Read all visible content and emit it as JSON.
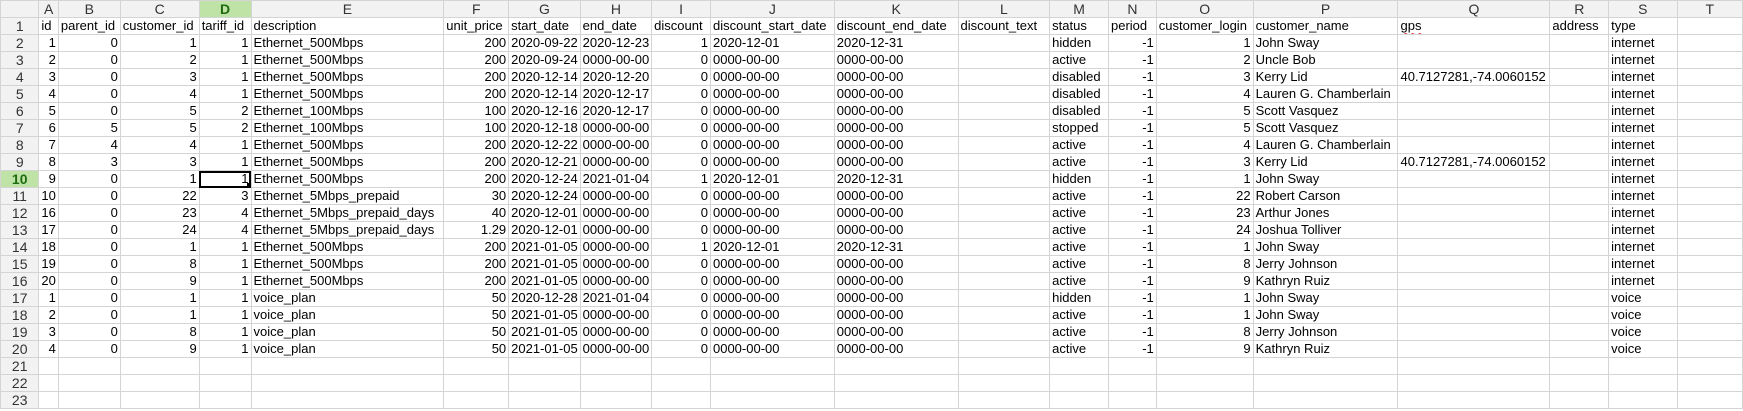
{
  "sheet": {
    "selected_cell": "D10",
    "column_letters": [
      "A",
      "B",
      "C",
      "D",
      "E",
      "F",
      "G",
      "H",
      "I",
      "J",
      "K",
      "L",
      "M",
      "N",
      "O",
      "P",
      "Q",
      "R",
      "S",
      "T"
    ],
    "row_numbers": [
      1,
      2,
      3,
      4,
      5,
      6,
      7,
      8,
      9,
      10,
      11,
      12,
      13,
      14,
      15,
      16,
      17,
      18,
      19,
      20,
      21,
      22,
      23
    ],
    "headers": [
      "id",
      "parent_id",
      "customer_id",
      "tariff_id",
      "description",
      "unit_price",
      "start_date",
      "end_date",
      "discount",
      "discount_start_date",
      "discount_end_date",
      "discount_text",
      "status",
      "period",
      "customer_login",
      "customer_name",
      "gps",
      "address",
      "type",
      ""
    ],
    "rows": [
      [
        "1",
        "0",
        "1",
        "1",
        "Ethernet_500Mbps",
        "200",
        "2020-09-22",
        "2020-12-23",
        "1",
        "2020-12-01",
        "2020-12-31",
        "",
        "hidden",
        "-1",
        "1",
        "John Sway",
        "",
        "",
        "internet",
        ""
      ],
      [
        "2",
        "0",
        "2",
        "1",
        "Ethernet_500Mbps",
        "200",
        "2020-09-24",
        "0000-00-00",
        "0",
        "0000-00-00",
        "0000-00-00",
        "",
        "active",
        "-1",
        "2",
        "Uncle Bob",
        "",
        "",
        "internet",
        ""
      ],
      [
        "3",
        "0",
        "3",
        "1",
        "Ethernet_500Mbps",
        "200",
        "2020-12-14",
        "2020-12-20",
        "0",
        "0000-00-00",
        "0000-00-00",
        "",
        "disabled",
        "-1",
        "3",
        "Kerry Lid",
        "40.7127281,-74.0060152",
        "",
        "internet",
        ""
      ],
      [
        "4",
        "0",
        "4",
        "1",
        "Ethernet_500Mbps",
        "200",
        "2020-12-14",
        "2020-12-17",
        "0",
        "0000-00-00",
        "0000-00-00",
        "",
        "disabled",
        "-1",
        "4",
        "Lauren G. Chamberlain",
        "",
        "",
        "internet",
        ""
      ],
      [
        "5",
        "0",
        "5",
        "2",
        "Ethernet_100Mbps",
        "100",
        "2020-12-16",
        "2020-12-17",
        "0",
        "0000-00-00",
        "0000-00-00",
        "",
        "disabled",
        "-1",
        "5",
        "Scott Vasquez",
        "",
        "",
        "internet",
        ""
      ],
      [
        "6",
        "5",
        "5",
        "2",
        "Ethernet_100Mbps",
        "100",
        "2020-12-18",
        "0000-00-00",
        "0",
        "0000-00-00",
        "0000-00-00",
        "",
        "stopped",
        "-1",
        "5",
        "Scott Vasquez",
        "",
        "",
        "internet",
        ""
      ],
      [
        "7",
        "4",
        "4",
        "1",
        "Ethernet_500Mbps",
        "200",
        "2020-12-22",
        "0000-00-00",
        "0",
        "0000-00-00",
        "0000-00-00",
        "",
        "active",
        "-1",
        "4",
        "Lauren G. Chamberlain",
        "",
        "",
        "internet",
        ""
      ],
      [
        "8",
        "3",
        "3",
        "1",
        "Ethernet_500Mbps",
        "200",
        "2020-12-21",
        "0000-00-00",
        "0",
        "0000-00-00",
        "0000-00-00",
        "",
        "active",
        "-1",
        "3",
        "Kerry Lid",
        "40.7127281,-74.0060152",
        "",
        "internet",
        ""
      ],
      [
        "9",
        "0",
        "1",
        "1",
        "Ethernet_500Mbps",
        "200",
        "2020-12-24",
        "2021-01-04",
        "1",
        "2020-12-01",
        "2020-12-31",
        "",
        "hidden",
        "-1",
        "1",
        "John Sway",
        "",
        "",
        "internet",
        ""
      ],
      [
        "10",
        "0",
        "22",
        "3",
        "Ethernet_5Mbps_prepaid",
        "30",
        "2020-12-24",
        "0000-00-00",
        "0",
        "0000-00-00",
        "0000-00-00",
        "",
        "active",
        "-1",
        "22",
        "Robert Carson",
        "",
        "",
        "internet",
        ""
      ],
      [
        "16",
        "0",
        "23",
        "4",
        "Ethernet_5Mbps_prepaid_days",
        "40",
        "2020-12-01",
        "0000-00-00",
        "0",
        "0000-00-00",
        "0000-00-00",
        "",
        "active",
        "-1",
        "23",
        "Arthur Jones",
        "",
        "",
        "internet",
        ""
      ],
      [
        "17",
        "0",
        "24",
        "4",
        "Ethernet_5Mbps_prepaid_days",
        "1.29",
        "2020-12-01",
        "0000-00-00",
        "0",
        "0000-00-00",
        "0000-00-00",
        "",
        "active",
        "-1",
        "24",
        "Joshua Tolliver",
        "",
        "",
        "internet",
        ""
      ],
      [
        "18",
        "0",
        "1",
        "1",
        "Ethernet_500Mbps",
        "200",
        "2021-01-05",
        "0000-00-00",
        "1",
        "2020-12-01",
        "2020-12-31",
        "",
        "active",
        "-1",
        "1",
        "John Sway",
        "",
        "",
        "internet",
        ""
      ],
      [
        "19",
        "0",
        "8",
        "1",
        "Ethernet_500Mbps",
        "200",
        "2021-01-05",
        "0000-00-00",
        "0",
        "0000-00-00",
        "0000-00-00",
        "",
        "active",
        "-1",
        "8",
        "Jerry Johnson",
        "",
        "",
        "internet",
        ""
      ],
      [
        "20",
        "0",
        "9",
        "1",
        "Ethernet_500Mbps",
        "200",
        "2021-01-05",
        "0000-00-00",
        "0",
        "0000-00-00",
        "0000-00-00",
        "",
        "active",
        "-1",
        "9",
        "Kathryn Ruiz",
        "",
        "",
        "internet",
        ""
      ],
      [
        "1",
        "0",
        "1",
        "1",
        "voice_plan",
        "50",
        "2020-12-28",
        "2021-01-04",
        "0",
        "0000-00-00",
        "0000-00-00",
        "",
        "hidden",
        "-1",
        "1",
        "John Sway",
        "",
        "",
        "voice",
        ""
      ],
      [
        "2",
        "0",
        "1",
        "1",
        "voice_plan",
        "50",
        "2021-01-05",
        "0000-00-00",
        "0",
        "0000-00-00",
        "0000-00-00",
        "",
        "active",
        "-1",
        "1",
        "John Sway",
        "",
        "",
        "voice",
        ""
      ],
      [
        "3",
        "0",
        "8",
        "1",
        "voice_plan",
        "50",
        "2021-01-05",
        "0000-00-00",
        "0",
        "0000-00-00",
        "0000-00-00",
        "",
        "active",
        "-1",
        "8",
        "Jerry Johnson",
        "",
        "",
        "voice",
        ""
      ],
      [
        "4",
        "0",
        "9",
        "1",
        "voice_plan",
        "50",
        "2021-01-05",
        "0000-00-00",
        "0",
        "0000-00-00",
        "0000-00-00",
        "",
        "active",
        "-1",
        "9",
        "Kathryn Ruiz",
        "",
        "",
        "voice",
        ""
      ],
      [
        "",
        "",
        "",
        "",
        "",
        "",
        "",
        "",
        "",
        "",
        "",
        "",
        "",
        "",
        "",
        "",
        "",
        "",
        "",
        ""
      ],
      [
        "",
        "",
        "",
        "",
        "",
        "",
        "",
        "",
        "",
        "",
        "",
        "",
        "",
        "",
        "",
        "",
        "",
        "",
        "",
        ""
      ],
      [
        "",
        "",
        "",
        "",
        "",
        "",
        "",
        "",
        "",
        "",
        "",
        "",
        "",
        "",
        "",
        "",
        "",
        "",
        "",
        ""
      ]
    ]
  }
}
